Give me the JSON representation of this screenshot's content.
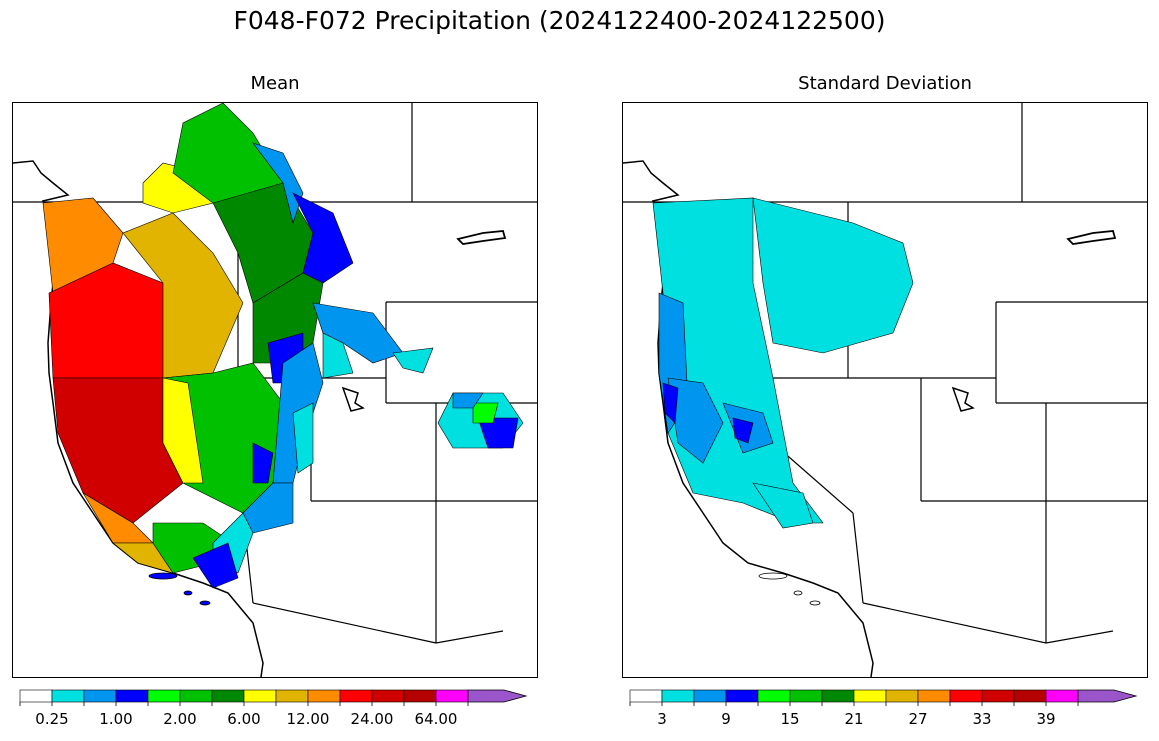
{
  "title": "F048-F072 Precipitation (2024122400-2024122500)",
  "panels": [
    {
      "title": "Mean",
      "tick_labels": [
        "0.25",
        "1.00",
        "2.00",
        "6.00",
        "12.00",
        "24.00",
        "64.00"
      ]
    },
    {
      "title": "Standard Deviation",
      "tick_labels": [
        "3",
        "9",
        "15",
        "21",
        "27",
        "33",
        "39"
      ]
    }
  ],
  "colorbar": {
    "colors": [
      "#ffffff",
      "#00e0e0",
      "#0096f0",
      "#0000ff",
      "#00ff00",
      "#00c000",
      "#008800",
      "#ffff00",
      "#e0b400",
      "#ff8c00",
      "#ff0000",
      "#d00000",
      "#b40000",
      "#ff00ff",
      "#9955c9"
    ],
    "extend": "max"
  },
  "map_region": "Western United States river basins",
  "legend_note": ""
}
